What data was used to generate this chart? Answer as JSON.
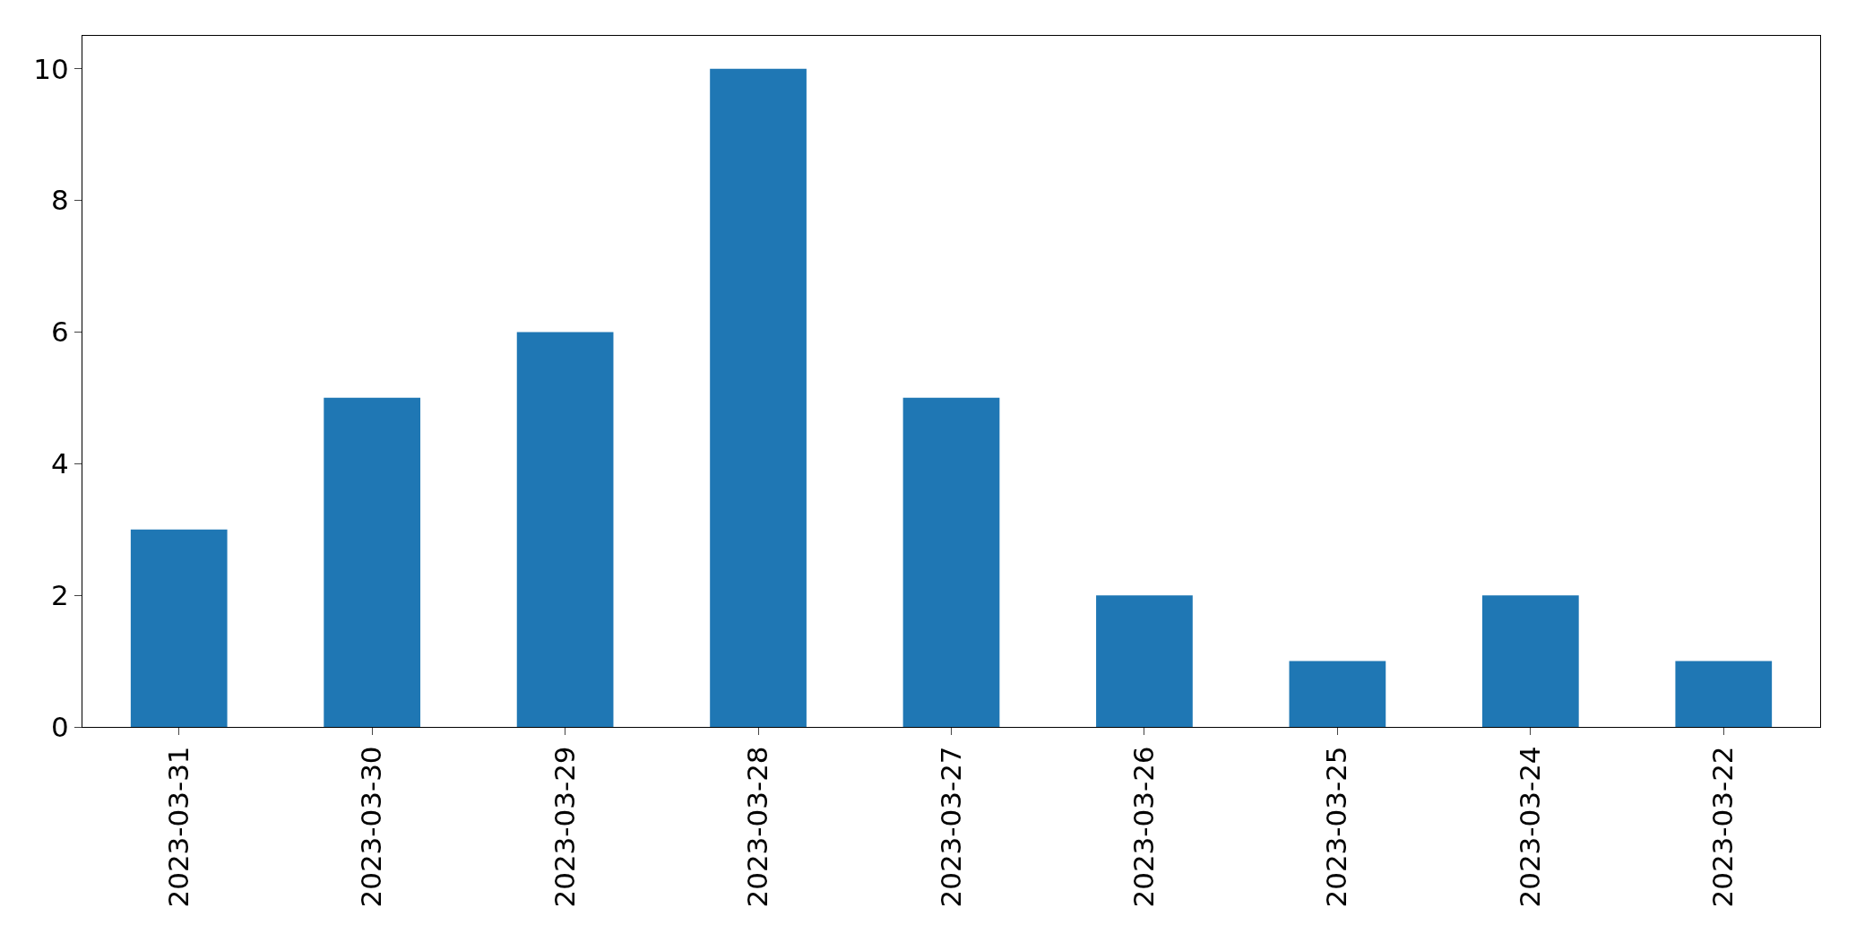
{
  "chart_data": {
    "type": "bar",
    "categories": [
      "2023-03-31",
      "2023-03-30",
      "2023-03-29",
      "2023-03-28",
      "2023-03-27",
      "2023-03-26",
      "2023-03-25",
      "2023-03-24",
      "2023-03-22"
    ],
    "values": [
      3,
      5,
      6,
      10,
      5,
      2,
      1,
      2,
      1
    ],
    "color": "#1f77b4",
    "ylim": [
      0,
      10.5
    ],
    "yticks": [
      0,
      2,
      4,
      6,
      8,
      10
    ]
  }
}
